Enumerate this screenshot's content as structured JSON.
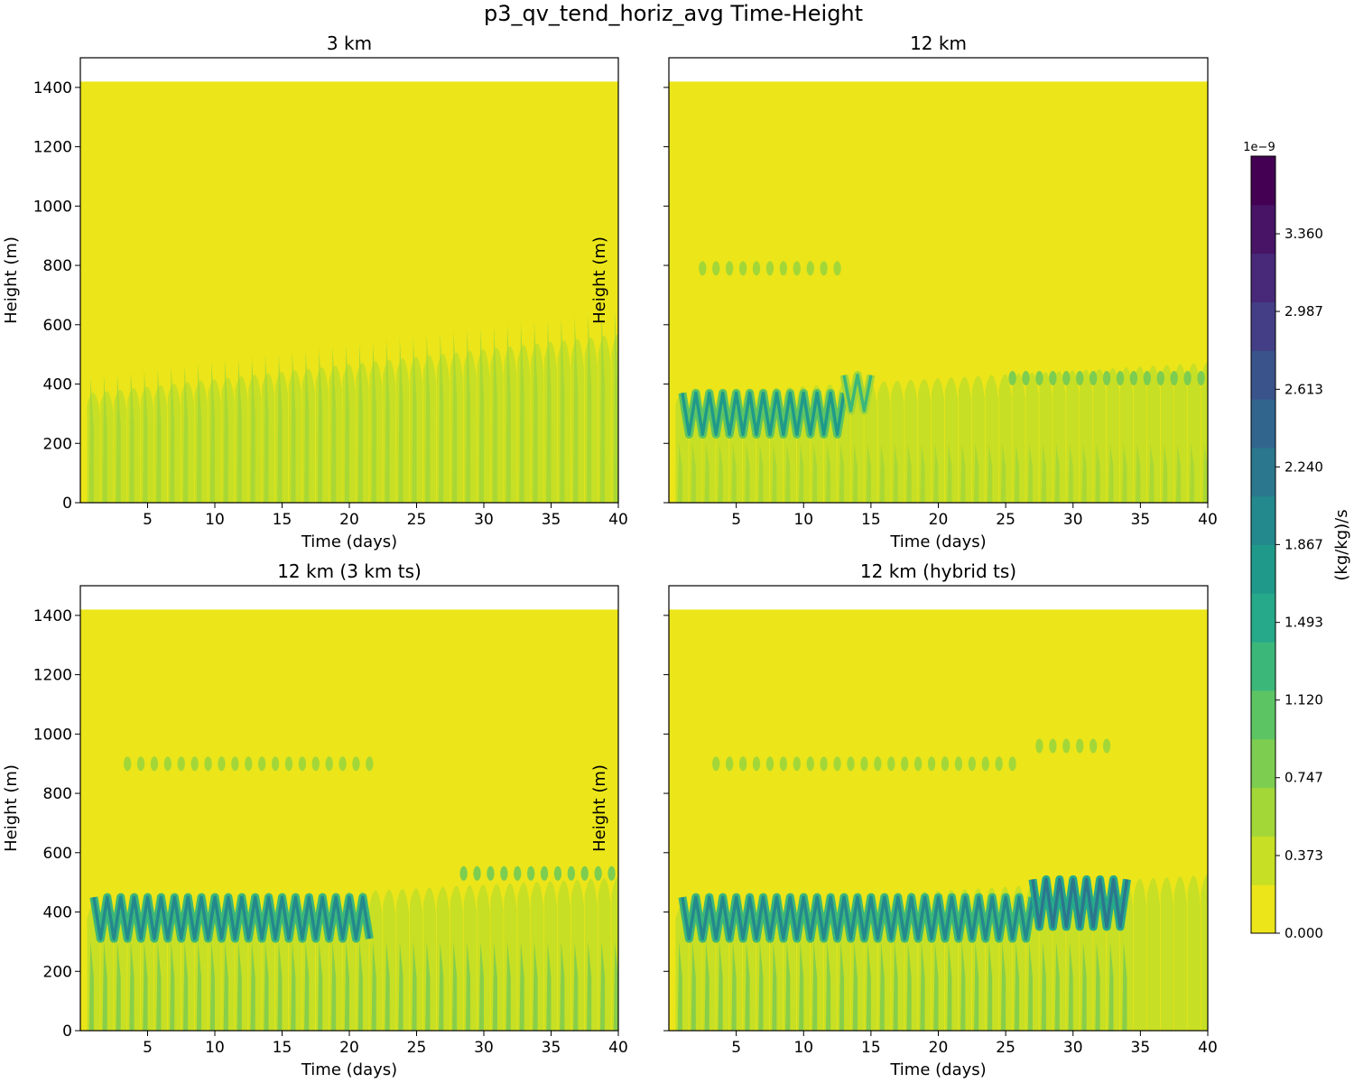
{
  "chart_data": {
    "type": "heatmap",
    "title": "p3_qv_tend_horiz_avg Time-Height",
    "panels": [
      {
        "title": "3 km",
        "xlabel": "Time (days)",
        "ylabel": "Height (m)",
        "xlim": [
          0,
          40
        ],
        "ylim": [
          0,
          1500
        ],
        "xticks": [
          5,
          10,
          15,
          20,
          25,
          30,
          35,
          40
        ],
        "yticks": [
          0,
          200,
          400,
          600,
          800,
          1000,
          1200,
          1400
        ],
        "data_top": 1420,
        "cycles": {
          "start": 0.5,
          "end": 40,
          "period": 1.0
        },
        "features": [
          {
            "kind": "oscillating_band",
            "t0": 0,
            "t1": 40,
            "z_top_start": 420,
            "z_top_end": 650,
            "level": 1
          },
          {
            "kind": "band_stripes",
            "t0": 0,
            "t1": 40,
            "z_bot": 0,
            "z_top_start": 420,
            "z_top_end": 650,
            "level": 2
          }
        ]
      },
      {
        "title": "12 km",
        "xlabel": "Time (days)",
        "ylabel": "Height (m)",
        "xlim": [
          0,
          40
        ],
        "ylim": [
          0,
          1500
        ],
        "xticks": [
          5,
          10,
          15,
          20,
          25,
          30,
          35,
          40
        ],
        "yticks": [
          0,
          200,
          400,
          600,
          800,
          1000,
          1200,
          1400
        ],
        "data_top": 1420,
        "cycles": {
          "start": 0.5,
          "end": 40,
          "period": 1.0
        },
        "features": [
          {
            "kind": "oscillating_band",
            "t0": 0,
            "t1": 40,
            "z_top_start": 420,
            "z_top_end": 540,
            "level": 1
          },
          {
            "kind": "band_stripes",
            "t0": 0,
            "t1": 40,
            "z_bot": 0,
            "z_top_start": 200,
            "z_top_end": 200,
            "level": 2
          },
          {
            "kind": "zigzag",
            "t0": 1,
            "t1": 13,
            "z_center": 300,
            "amp": 70,
            "level": 7
          },
          {
            "kind": "zigzag",
            "t0": 13,
            "t1": 15,
            "z_center": 370,
            "amp": 60,
            "level": 5
          },
          {
            "kind": "blobs",
            "t0": 2,
            "t1": 13,
            "z": 790,
            "level": 2
          },
          {
            "kind": "blobs",
            "t0": 25,
            "t1": 40,
            "z": 420,
            "level": 3
          }
        ]
      },
      {
        "title": "12 km (3 km ts)",
        "xlabel": "Time (days)",
        "ylabel": "Height (m)",
        "xlim": [
          0,
          40
        ],
        "ylim": [
          0,
          1500
        ],
        "xticks": [
          5,
          10,
          15,
          20,
          25,
          30,
          35,
          40
        ],
        "yticks": [
          0,
          200,
          400,
          600,
          800,
          1000,
          1200,
          1400
        ],
        "data_top": 1420,
        "cycles": {
          "start": 0.5,
          "end": 40,
          "period": 1.0
        },
        "features": [
          {
            "kind": "oscillating_band",
            "t0": 0,
            "t1": 40,
            "z_top_start": 480,
            "z_top_end": 590,
            "level": 1
          },
          {
            "kind": "band_stripes",
            "t0": 0,
            "t1": 40,
            "z_bot": 0,
            "z_top_start": 300,
            "z_top_end": 300,
            "level": 3
          },
          {
            "kind": "zigzag",
            "t0": 1,
            "t1": 21.5,
            "z_center": 380,
            "amp": 70,
            "level": 8
          },
          {
            "kind": "blobs",
            "t0": 3,
            "t1": 21.5,
            "z": 900,
            "level": 2
          },
          {
            "kind": "blobs",
            "t0": 28,
            "t1": 40,
            "z": 530,
            "level": 3
          }
        ]
      },
      {
        "title": "12 km (hybrid ts)",
        "xlabel": "Time (days)",
        "ylabel": "Height (m)",
        "xlim": [
          0,
          40
        ],
        "ylim": [
          0,
          1500
        ],
        "xticks": [
          5,
          10,
          15,
          20,
          25,
          30,
          35,
          40
        ],
        "yticks": [
          0,
          200,
          400,
          600,
          800,
          1000,
          1200,
          1400
        ],
        "data_top": 1420,
        "cycles": {
          "start": 0.5,
          "end": 40,
          "period": 1.0
        },
        "features": [
          {
            "kind": "oscillating_band",
            "t0": 0,
            "t1": 40,
            "z_top_start": 480,
            "z_top_end": 600,
            "level": 1
          },
          {
            "kind": "band_stripes",
            "t0": 0,
            "t1": 34,
            "z_bot": 0,
            "z_top_start": 300,
            "z_top_end": 300,
            "level": 3
          },
          {
            "kind": "zigzag",
            "t0": 1,
            "t1": 27,
            "z_center": 380,
            "amp": 70,
            "level": 8
          },
          {
            "kind": "zigzag",
            "t0": 27,
            "t1": 34,
            "z_center": 430,
            "amp": 80,
            "level": 9
          },
          {
            "kind": "blobs",
            "t0": 3,
            "t1": 26,
            "z": 900,
            "level": 2
          },
          {
            "kind": "blobs",
            "t0": 27,
            "t1": 33,
            "z": 960,
            "level": 2
          }
        ]
      }
    ],
    "colorbar": {
      "label": "(kg/kg)/s",
      "multiplier": "1e−9",
      "min": 0,
      "max": 3.733,
      "tick_values": [
        0.0,
        0.373,
        0.747,
        1.12,
        1.493,
        1.867,
        2.24,
        2.613,
        2.987,
        3.36
      ],
      "tick_labels": [
        "0.000",
        "0.373",
        "0.747",
        "1.120",
        "1.493",
        "1.867",
        "2.240",
        "2.613",
        "2.987",
        "3.360"
      ],
      "colors": [
        "#ebe51a",
        "#c7df24",
        "#a3d738",
        "#7ccd50",
        "#5cc463",
        "#3bb77a",
        "#26a98a",
        "#1f9a8a",
        "#24898d",
        "#2b778e",
        "#32658e",
        "#3a538b",
        "#433e85",
        "#482878",
        "#471466",
        "#440154"
      ]
    }
  }
}
